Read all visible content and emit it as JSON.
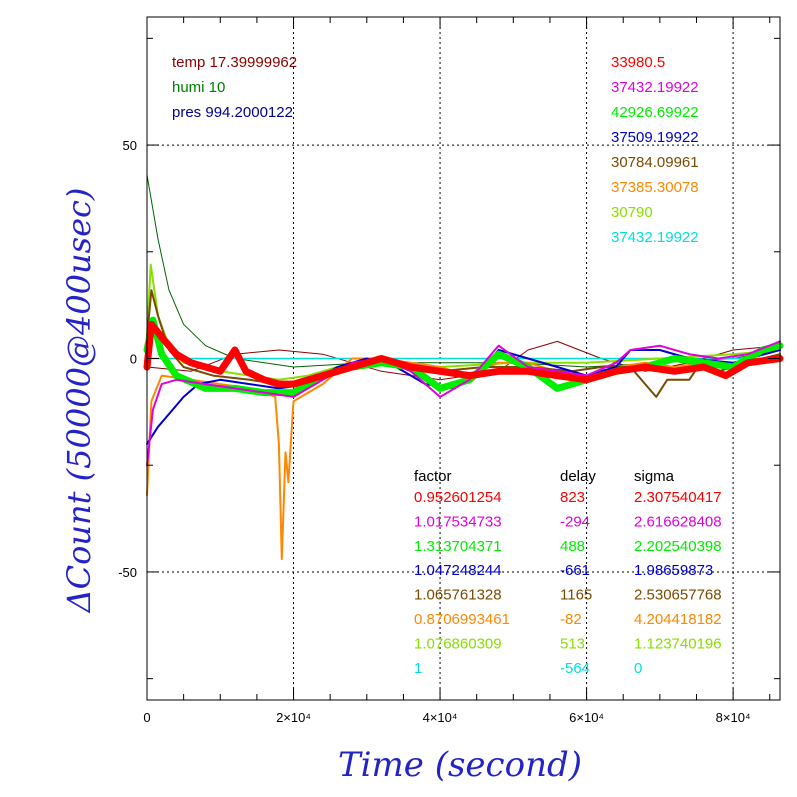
{
  "chart_data": {
    "type": "line",
    "xlabel": "Time (second)",
    "ylabel": "ΔCount (50000@400usec)",
    "xlim": [
      0,
      86400
    ],
    "ylim": [
      -80,
      80
    ],
    "grid": true,
    "x_ticks": [
      {
        "value": 0,
        "label": "0"
      },
      {
        "value": 20000,
        "label": "2×10⁴"
      },
      {
        "value": 40000,
        "label": "4×10⁴"
      },
      {
        "value": 60000,
        "label": "6×10⁴"
      },
      {
        "value": 80000,
        "label": "8×10⁴"
      }
    ],
    "y_ticks": [
      {
        "value": 50,
        "label": "50"
      },
      {
        "value": 0,
        "label": "0"
      },
      {
        "value": -50,
        "label": "-50"
      }
    ],
    "env_info": [
      {
        "text": "temp 17.39999962",
        "color": "#8b0000"
      },
      {
        "text": "humi 10",
        "color": "#008000"
      },
      {
        "text": "pres 994.2000122",
        "color": "#00008b"
      }
    ],
    "table_headers": [
      "factor",
      "delay",
      "sigma"
    ],
    "series": [
      {
        "value": "33980.5",
        "factor": "0.952601254",
        "delay": "823",
        "sigma": "2.307540417",
        "color": "#ff0000",
        "width": 7,
        "points": [
          [
            0,
            -2
          ],
          [
            600,
            8
          ],
          [
            2000,
            5
          ],
          [
            4000,
            1
          ],
          [
            6000,
            -1
          ],
          [
            8000,
            -2
          ],
          [
            10000,
            -3
          ],
          [
            12000,
            2
          ],
          [
            13500,
            -3
          ],
          [
            16000,
            -5
          ],
          [
            18000,
            -6
          ],
          [
            20000,
            -6
          ],
          [
            24000,
            -4
          ],
          [
            28000,
            -2
          ],
          [
            32000,
            0
          ],
          [
            36000,
            -2
          ],
          [
            40000,
            -3
          ],
          [
            44000,
            -4
          ],
          [
            48000,
            -3
          ],
          [
            52000,
            -3
          ],
          [
            56000,
            -4
          ],
          [
            60000,
            -5
          ],
          [
            64000,
            -3
          ],
          [
            68000,
            -2
          ],
          [
            72000,
            -3
          ],
          [
            76000,
            -2
          ],
          [
            79000,
            -4
          ],
          [
            82000,
            -1
          ],
          [
            86400,
            0
          ]
        ]
      },
      {
        "value": "37432.19922",
        "factor": "1.017534733",
        "delay": "-294",
        "sigma": "2.616628408",
        "color": "#e000e0",
        "width": 2,
        "points": [
          [
            0,
            -25
          ],
          [
            800,
            -12
          ],
          [
            2000,
            -6
          ],
          [
            4000,
            -5
          ],
          [
            8000,
            -6
          ],
          [
            12000,
            -7
          ],
          [
            16000,
            -8
          ],
          [
            20000,
            -9
          ],
          [
            24000,
            -5
          ],
          [
            28000,
            -1
          ],
          [
            32000,
            0
          ],
          [
            36000,
            -3
          ],
          [
            40000,
            -9
          ],
          [
            44000,
            -5
          ],
          [
            48000,
            3
          ],
          [
            52000,
            -2
          ],
          [
            56000,
            -3
          ],
          [
            60000,
            -4
          ],
          [
            64000,
            -1
          ],
          [
            66000,
            2
          ],
          [
            70000,
            3
          ],
          [
            74000,
            1
          ],
          [
            78000,
            0
          ],
          [
            82000,
            1
          ],
          [
            86400,
            4
          ]
        ]
      },
      {
        "value": "42926.69922",
        "factor": "1.313704371",
        "delay": "488",
        "sigma": "2.202540398",
        "color": "#00ee00",
        "width": 7,
        "points": [
          [
            0,
            2
          ],
          [
            800,
            9
          ],
          [
            2000,
            1
          ],
          [
            4000,
            -4
          ],
          [
            8000,
            -7
          ],
          [
            12000,
            -7
          ],
          [
            16000,
            -8
          ],
          [
            20000,
            -8
          ],
          [
            24000,
            -4
          ],
          [
            28000,
            -2
          ],
          [
            32000,
            -1
          ],
          [
            36000,
            -2
          ],
          [
            40000,
            -7
          ],
          [
            44000,
            -5
          ],
          [
            48000,
            1
          ],
          [
            52000,
            -2
          ],
          [
            56000,
            -7
          ],
          [
            60000,
            -5
          ],
          [
            64000,
            -3
          ],
          [
            68000,
            -2
          ],
          [
            72000,
            0
          ],
          [
            76000,
            -1
          ],
          [
            80000,
            -2
          ],
          [
            84000,
            2
          ],
          [
            86400,
            3
          ]
        ]
      },
      {
        "value": "37509.19922",
        "factor": "1.047248244",
        "delay": "-661",
        "sigma": "1.98659873",
        "color": "#0000cc",
        "width": 2,
        "points": [
          [
            0,
            -20
          ],
          [
            1500,
            -16
          ],
          [
            3000,
            -13
          ],
          [
            5000,
            -9
          ],
          [
            7000,
            -6
          ],
          [
            10000,
            -5
          ],
          [
            14000,
            -6
          ],
          [
            18000,
            -7
          ],
          [
            22000,
            -6
          ],
          [
            26000,
            -2
          ],
          [
            30000,
            0
          ],
          [
            34000,
            -2
          ],
          [
            38000,
            -6
          ],
          [
            42000,
            -7
          ],
          [
            46000,
            -2
          ],
          [
            48000,
            2
          ],
          [
            52000,
            0
          ],
          [
            56000,
            -2
          ],
          [
            60000,
            -4
          ],
          [
            64000,
            -2
          ],
          [
            66000,
            2
          ],
          [
            70000,
            2
          ],
          [
            74000,
            0
          ],
          [
            80000,
            -1
          ],
          [
            86400,
            2
          ]
        ]
      },
      {
        "value": "30784.09961",
        "factor": "1.065761328",
        "delay": "1165",
        "sigma": "2.530657768",
        "color": "#7a4a00",
        "width": 2,
        "points": [
          [
            0,
            5
          ],
          [
            600,
            16
          ],
          [
            1500,
            10
          ],
          [
            3000,
            2
          ],
          [
            5000,
            -2
          ],
          [
            9000,
            -4
          ],
          [
            14000,
            -5
          ],
          [
            18000,
            -6
          ],
          [
            22000,
            -5
          ],
          [
            28000,
            -1
          ],
          [
            34000,
            -1
          ],
          [
            40000,
            -3
          ],
          [
            46000,
            -2
          ],
          [
            52000,
            -2
          ],
          [
            58000,
            -3
          ],
          [
            62000,
            -2
          ],
          [
            66000,
            -2
          ],
          [
            68000,
            -6
          ],
          [
            69500,
            -9
          ],
          [
            71000,
            -5
          ],
          [
            74000,
            -5
          ],
          [
            76000,
            0
          ],
          [
            78000,
            -3
          ],
          [
            80000,
            -2
          ],
          [
            84000,
            0
          ],
          [
            86400,
            1
          ]
        ]
      },
      {
        "value": "37385.30078",
        "factor": "0.8706993461",
        "delay": "-82",
        "sigma": "4.204418182",
        "color": "#ff8800",
        "width": 2,
        "points": [
          [
            0,
            -32
          ],
          [
            600,
            -10
          ],
          [
            2000,
            -4
          ],
          [
            6000,
            -5
          ],
          [
            10000,
            -6
          ],
          [
            14000,
            -7
          ],
          [
            16000,
            -8
          ],
          [
            17500,
            -9
          ],
          [
            18000,
            -20
          ],
          [
            18400,
            -47
          ],
          [
            18900,
            -22
          ],
          [
            19300,
            -29
          ],
          [
            19700,
            -18
          ],
          [
            20000,
            -10
          ],
          [
            24000,
            -6
          ],
          [
            28000,
            0
          ],
          [
            32000,
            0
          ],
          [
            36000,
            -1
          ],
          [
            40000,
            -2
          ],
          [
            44000,
            -4
          ],
          [
            48000,
            -1
          ],
          [
            52000,
            -1
          ],
          [
            56000,
            -3
          ],
          [
            60000,
            -4
          ],
          [
            64000,
            -2
          ],
          [
            68000,
            -1
          ],
          [
            72000,
            -2
          ],
          [
            76000,
            -1
          ],
          [
            80000,
            -2
          ],
          [
            86400,
            1
          ]
        ]
      },
      {
        "value": "30790",
        "factor": "1.076860309",
        "delay": "513",
        "sigma": "1.123740196",
        "color": "#88e000",
        "width": 2,
        "points": [
          [
            0,
            5
          ],
          [
            500,
            22
          ],
          [
            1500,
            10
          ],
          [
            3000,
            3
          ],
          [
            5000,
            -1
          ],
          [
            10000,
            -3
          ],
          [
            14000,
            -4
          ],
          [
            18000,
            -5
          ],
          [
            22000,
            -4
          ],
          [
            26000,
            -2
          ],
          [
            30000,
            -1
          ],
          [
            40000,
            -2
          ],
          [
            50000,
            -1
          ],
          [
            60000,
            -1
          ],
          [
            70000,
            0
          ],
          [
            80000,
            1
          ],
          [
            86400,
            2
          ]
        ]
      },
      {
        "value": "37432.19922",
        "factor": "1",
        "delay": "-564",
        "sigma": "0",
        "color": "#00e0e0",
        "width": 1.5,
        "points": [
          [
            0,
            0
          ],
          [
            86400,
            0
          ]
        ]
      },
      {
        "value": "",
        "factor": "",
        "delay": "",
        "sigma": "",
        "color": "#006400",
        "width": 1,
        "points": [
          [
            0,
            43
          ],
          [
            1500,
            28
          ],
          [
            3000,
            16
          ],
          [
            5000,
            8
          ],
          [
            8000,
            3
          ],
          [
            12000,
            0
          ],
          [
            20000,
            -2
          ],
          [
            30000,
            -1
          ],
          [
            40000,
            -1
          ],
          [
            50000,
            -1
          ],
          [
            60000,
            -2
          ],
          [
            70000,
            -1
          ],
          [
            80000,
            0
          ],
          [
            86400,
            2
          ]
        ]
      },
      {
        "value": "",
        "factor": "",
        "delay": "",
        "sigma": "",
        "color": "#8b0000",
        "width": 1,
        "points": [
          [
            0,
            -2
          ],
          [
            6000,
            -3
          ],
          [
            12000,
            1
          ],
          [
            18000,
            2
          ],
          [
            24000,
            1
          ],
          [
            32000,
            -3
          ],
          [
            40000,
            -5
          ],
          [
            48000,
            -3
          ],
          [
            52000,
            2
          ],
          [
            56000,
            4
          ],
          [
            62000,
            0
          ],
          [
            68000,
            -3
          ],
          [
            74000,
            -1
          ],
          [
            80000,
            2
          ],
          [
            86400,
            3
          ]
        ]
      }
    ]
  }
}
